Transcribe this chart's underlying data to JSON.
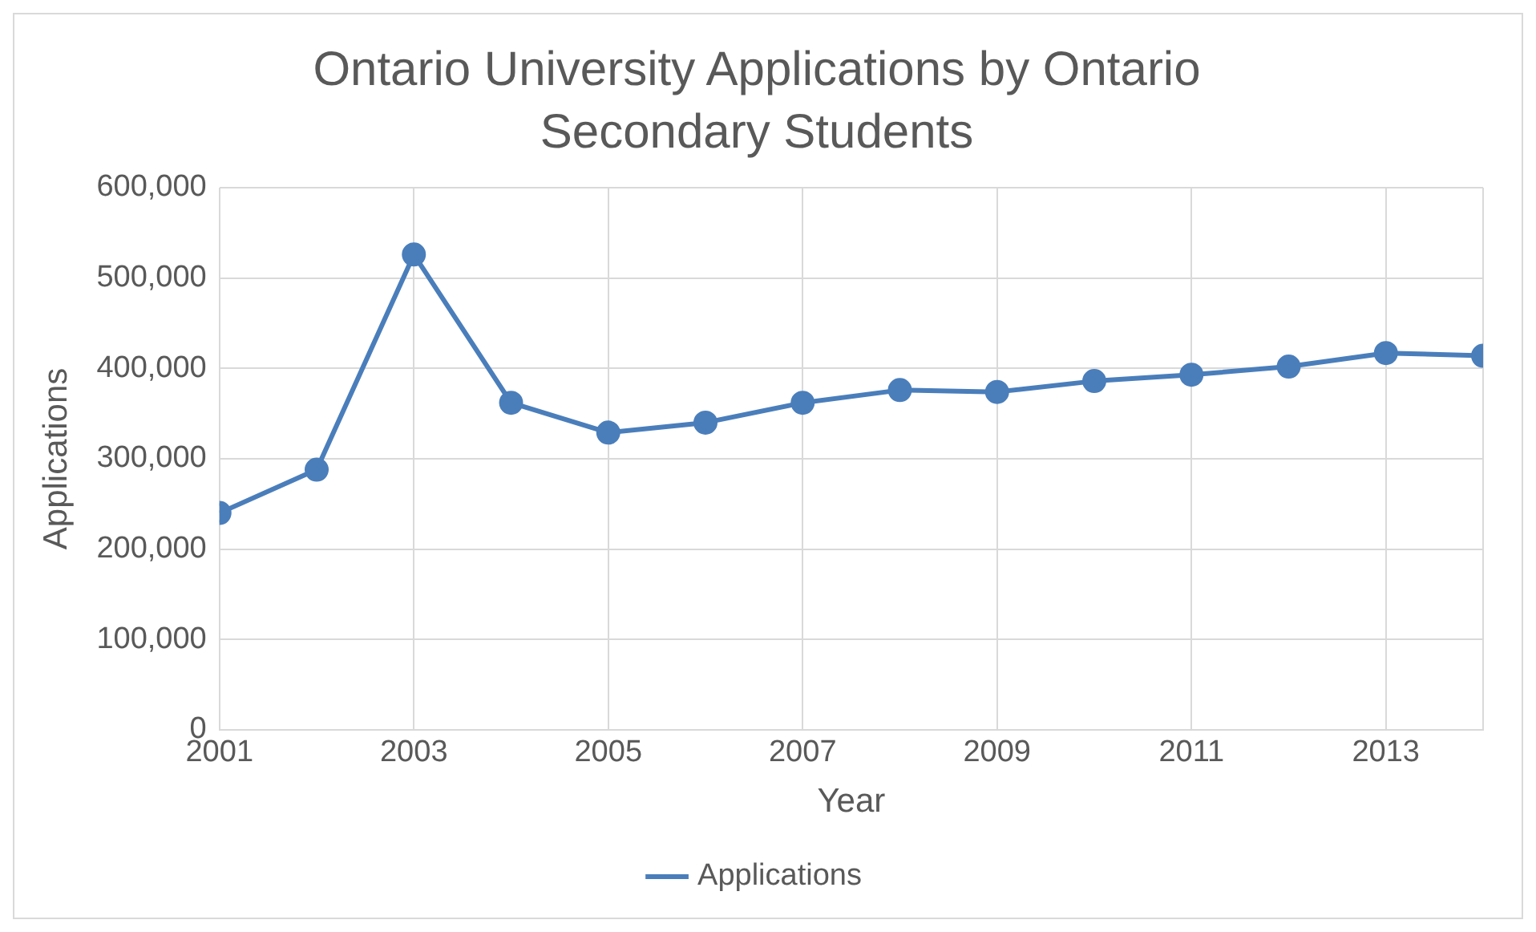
{
  "chart_data": {
    "type": "line",
    "title": "Ontario University Applications by Ontario Secondary Students",
    "xlabel": "Year",
    "ylabel": "Applications",
    "x": [
      2001,
      2002,
      2003,
      2004,
      2005,
      2006,
      2007,
      2008,
      2009,
      2010,
      2011,
      2012,
      2013,
      2014
    ],
    "series": [
      {
        "name": "Applications",
        "color": "#4a7ebb",
        "values": [
          240000,
          288000,
          526000,
          362000,
          329000,
          340000,
          362000,
          376000,
          374000,
          386000,
          393000,
          402000,
          417000,
          414000
        ]
      }
    ],
    "xlim": [
      2001,
      2014
    ],
    "xticks": [
      2001,
      2003,
      2005,
      2007,
      2009,
      2011,
      2013,
      {
        "value": 2014,
        "label": null
      }
    ],
    "ylim": [
      0,
      600000
    ],
    "yticks": [
      0,
      {
        "value": 100000,
        "label": "100,000"
      },
      {
        "value": 200000,
        "label": "200,000"
      },
      {
        "value": 300000,
        "label": "300,000"
      },
      {
        "value": 400000,
        "label": "400,000"
      },
      {
        "value": 500000,
        "label": "500,000"
      },
      {
        "value": 600000,
        "label": "600,000"
      }
    ],
    "grid": true,
    "legend": "bottom",
    "marker": "circle",
    "line_style": "solid"
  }
}
